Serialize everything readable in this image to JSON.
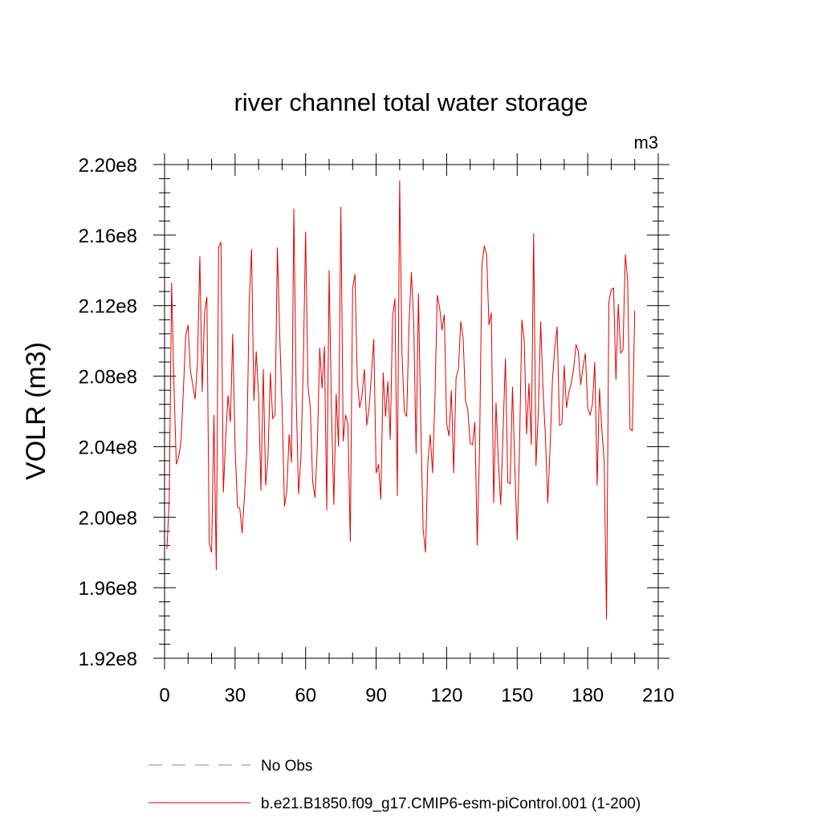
{
  "chart_data": {
    "type": "line",
    "title": "river channel total water storage",
    "units_label": "m3",
    "ylabel": "VOLR  (m3)",
    "xlabel": "",
    "xlim": [
      0,
      210
    ],
    "ylim": [
      192000000.0,
      220000000.0
    ],
    "x_ticks": [
      0,
      30,
      60,
      90,
      120,
      150,
      180,
      210
    ],
    "x_tick_labels": [
      "0",
      "30",
      "60",
      "90",
      "120",
      "150",
      "180",
      "210"
    ],
    "y_ticks": [
      192000000.0,
      196000000.0,
      200000000.0,
      204000000.0,
      208000000.0,
      212000000.0,
      216000000.0,
      220000000.0
    ],
    "y_tick_labels": [
      "1.92e8",
      "1.96e8",
      "2.00e8",
      "2.04e8",
      "2.08e8",
      "2.12e8",
      "2.16e8",
      "2.20e8"
    ],
    "grid": false,
    "legend_position": "bottom",
    "legend": [
      {
        "label": "No Obs",
        "color": "#7f7fbf",
        "dash": "dashed"
      },
      {
        "label": "b.e21.B1850.f09_g17.CMIP6-esm-piControl.001 (1-200)",
        "color": "#e00000",
        "dash": "solid"
      }
    ],
    "series": [
      {
        "name": "b.e21.B1850.f09_g17.CMIP6-esm-piControl.001 (1-200)",
        "color": "#e00000",
        "x": [
          1,
          2,
          3,
          4,
          5,
          6,
          7,
          8,
          9,
          10,
          11,
          12,
          13,
          14,
          15,
          16,
          17,
          18,
          19,
          20,
          21,
          22,
          23,
          24,
          25,
          26,
          27,
          28,
          29,
          30,
          31,
          32,
          33,
          34,
          35,
          36,
          37,
          38,
          39,
          40,
          41,
          42,
          43,
          44,
          45,
          46,
          47,
          48,
          49,
          50,
          51,
          52,
          53,
          54,
          55,
          56,
          57,
          58,
          59,
          60,
          61,
          62,
          63,
          64,
          65,
          66,
          67,
          68,
          69,
          70,
          71,
          72,
          73,
          74,
          75,
          76,
          77,
          78,
          79,
          80,
          81,
          82,
          83,
          84,
          85,
          86,
          87,
          88,
          89,
          90,
          91,
          92,
          93,
          94,
          95,
          96,
          97,
          98,
          99,
          100,
          101,
          102,
          103,
          104,
          105,
          106,
          107,
          108,
          109,
          110,
          111,
          112,
          113,
          114,
          115,
          116,
          117,
          118,
          119,
          120,
          121,
          122,
          123,
          124,
          125,
          126,
          127,
          128,
          129,
          130,
          131,
          132,
          133,
          134,
          135,
          136,
          137,
          138,
          139,
          140,
          141,
          142,
          143,
          144,
          145,
          146,
          147,
          148,
          149,
          150,
          151,
          152,
          153,
          154,
          155,
          156,
          157,
          158,
          159,
          160,
          161,
          162,
          163,
          164,
          165,
          166,
          167,
          168,
          169,
          170,
          171,
          172,
          173,
          174,
          175,
          176,
          177,
          178,
          179,
          180,
          181,
          182,
          183,
          184,
          185,
          186,
          187,
          188,
          189,
          190,
          191,
          192,
          193,
          194,
          195,
          196,
          197,
          198,
          199,
          200
        ],
        "values": [
          198200000.0,
          201000000.0,
          213300000.0,
          207500000.0,
          203000000.0,
          203400000.0,
          204300000.0,
          207200000.0,
          210300000.0,
          210900000.0,
          208300000.0,
          207500000.0,
          206700000.0,
          208800000.0,
          214800000.0,
          207100000.0,
          211600000.0,
          212500000.0,
          198500000.0,
          198000000.0,
          205800000.0,
          197000000.0,
          215300000.0,
          215600000.0,
          201400000.0,
          204500000.0,
          206900000.0,
          205400000.0,
          210400000.0,
          204000000.0,
          200600000.0,
          200500000.0,
          199100000.0,
          201200000.0,
          203900000.0,
          212200000.0,
          215200000.0,
          206600000.0,
          209400000.0,
          206900000.0,
          201500000.0,
          208400000.0,
          201800000.0,
          203400000.0,
          208200000.0,
          205600000.0,
          205800000.0,
          215300000.0,
          210300000.0,
          206200000.0,
          200600000.0,
          201500000.0,
          204700000.0,
          203100000.0,
          217500000.0,
          206700000.0,
          201300000.0,
          203400000.0,
          208500000.0,
          216200000.0,
          207400000.0,
          206200000.0,
          202000000.0,
          201100000.0,
          204100000.0,
          209600000.0,
          207300000.0,
          209700000.0,
          200400000.0,
          214000000.0,
          206100000.0,
          200700000.0,
          207000000.0,
          204000000.0,
          217600000.0,
          204300000.0,
          205800000.0,
          205300000.0,
          198600000.0,
          213000000.0,
          213800000.0,
          207800000.0,
          206200000.0,
          206900000.0,
          208400000.0,
          205200000.0,
          206200000.0,
          208100000.0,
          210100000.0,
          202500000.0,
          203000000.0,
          201000000.0,
          208200000.0,
          205700000.0,
          207700000.0,
          204400000.0,
          211400000.0,
          212400000.0,
          201200000.0,
          219100000.0,
          209300000.0,
          206000000.0,
          205700000.0,
          211000000.0,
          213900000.0,
          211000000.0,
          203600000.0,
          212700000.0,
          205200000.0,
          199300000.0,
          198000000.0,
          203100000.0,
          204700000.0,
          202500000.0,
          206700000.0,
          212600000.0,
          211900000.0,
          210600000.0,
          211500000.0,
          205300000.0,
          204600000.0,
          207200000.0,
          202500000.0,
          207900000.0,
          208400000.0,
          211100000.0,
          210200000.0,
          206600000.0,
          206100000.0,
          204200000.0,
          204100000.0,
          205400000.0,
          198400000.0,
          204000000.0,
          214300000.0,
          215400000.0,
          214900000.0,
          210900000.0,
          211600000.0,
          200800000.0,
          206500000.0,
          203100000.0,
          200700000.0,
          204900000.0,
          209000000.0,
          202000000.0,
          201900000.0,
          207400000.0,
          202800000.0,
          198700000.0,
          204000000.0,
          211200000.0,
          210000000.0,
          204700000.0,
          207600000.0,
          204100000.0,
          216100000.0,
          202900000.0,
          206000000.0,
          211100000.0,
          207200000.0,
          204600000.0,
          200800000.0,
          204000000.0,
          207800000.0,
          209600000.0,
          210800000.0,
          205200000.0,
          205300000.0,
          208600000.0,
          206200000.0,
          207100000.0,
          207600000.0,
          208400000.0,
          209800000.0,
          209400000.0,
          207500000.0,
          208500000.0,
          209300000.0,
          206200000.0,
          205800000.0,
          206400000.0,
          208800000.0,
          201800000.0,
          207300000.0,
          205000000.0,
          203200000.0,
          194200000.0,
          212200000.0,
          212900000.0,
          213000000.0,
          207800000.0,
          212100000.0,
          209300000.0,
          209500000.0,
          214900000.0,
          213400000.0,
          205000000.0,
          204900000.0,
          211700000.0
        ]
      }
    ]
  }
}
